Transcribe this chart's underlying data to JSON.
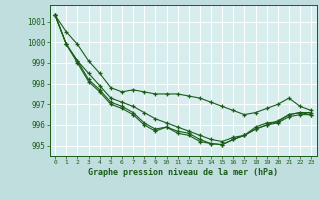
{
  "title": "Graphe pression niveau de la mer (hPa)",
  "bg_color": "#c0dede",
  "plot_bg_color": "#d8eeee",
  "grid_color": "#b8d4d4",
  "line_color": "#1a5c1a",
  "xlim": [
    -0.5,
    23.5
  ],
  "ylim": [
    994.5,
    1001.8
  ],
  "xtick_labels": [
    "0",
    "1",
    "2",
    "3",
    "4",
    "5",
    "6",
    "7",
    "8",
    "9",
    "10",
    "11",
    "12",
    "13",
    "14",
    "15",
    "16",
    "17",
    "18",
    "19",
    "20",
    "21",
    "22",
    "23"
  ],
  "ytick_labels": [
    "995",
    "996",
    "997",
    "998",
    "999",
    "1000",
    "1001"
  ],
  "ytick_vals": [
    995,
    996,
    997,
    998,
    999,
    1000,
    1001
  ],
  "series": [
    [
      1001.3,
      1000.5,
      999.9,
      999.1,
      998.5,
      997.8,
      997.6,
      997.7,
      997.6,
      997.5,
      997.5,
      997.5,
      997.4,
      997.3,
      997.1,
      996.9,
      996.7,
      996.5,
      996.6,
      996.8,
      997.0,
      997.3,
      996.9,
      996.7
    ],
    [
      1001.3,
      999.9,
      999.0,
      998.1,
      997.6,
      997.0,
      996.8,
      996.5,
      996.0,
      995.7,
      995.9,
      995.6,
      995.5,
      995.2,
      995.1,
      995.05,
      995.3,
      995.5,
      995.8,
      996.0,
      996.2,
      996.5,
      996.6,
      996.5
    ],
    [
      1001.3,
      999.9,
      999.1,
      998.2,
      997.7,
      997.1,
      996.9,
      996.6,
      996.1,
      995.8,
      995.9,
      995.7,
      995.6,
      995.3,
      995.1,
      995.05,
      995.3,
      995.5,
      995.8,
      996.0,
      996.1,
      996.4,
      996.5,
      996.5
    ],
    [
      1001.3,
      999.9,
      999.1,
      998.5,
      997.9,
      997.3,
      997.1,
      996.9,
      996.6,
      996.3,
      996.1,
      995.9,
      995.7,
      995.5,
      995.3,
      995.2,
      995.4,
      995.5,
      995.9,
      996.1,
      996.15,
      996.5,
      996.6,
      996.6
    ]
  ]
}
